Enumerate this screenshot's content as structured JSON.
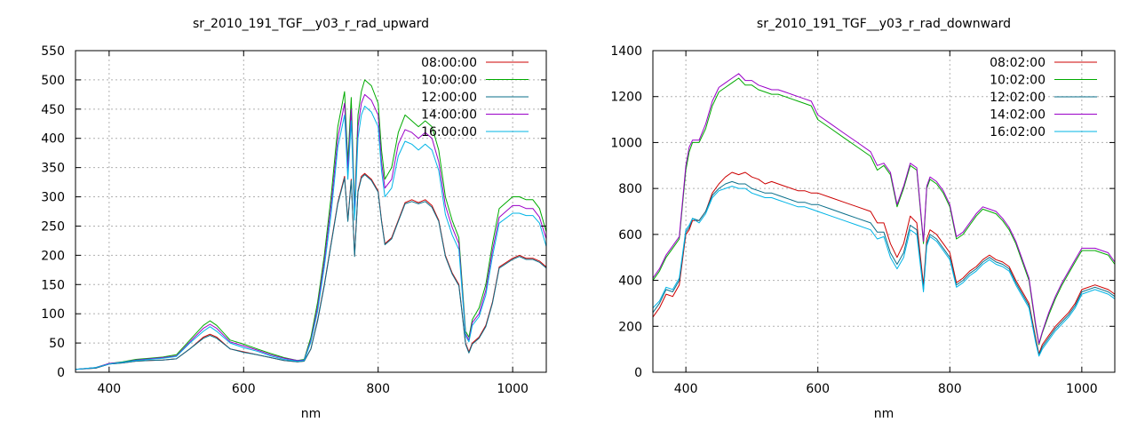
{
  "chart_data": [
    {
      "type": "line",
      "title": "sr_2010_191_TGF__y03_r_rad_upward",
      "xlabel": "nm",
      "ylabel": "",
      "xlim": [
        350,
        1050
      ],
      "ylim": [
        0,
        550
      ],
      "xticks": [
        400,
        600,
        800,
        1000
      ],
      "yticks": [
        0,
        50,
        100,
        150,
        200,
        250,
        300,
        350,
        400,
        450,
        500,
        550
      ],
      "grid": true,
      "legend": "top-right",
      "x": [
        350,
        380,
        400,
        420,
        440,
        460,
        480,
        500,
        520,
        540,
        550,
        560,
        580,
        600,
        620,
        640,
        660,
        680,
        690,
        700,
        710,
        720,
        730,
        740,
        750,
        755,
        760,
        765,
        770,
        775,
        780,
        790,
        800,
        805,
        810,
        820,
        830,
        840,
        850,
        860,
        870,
        880,
        890,
        900,
        910,
        920,
        925,
        930,
        935,
        940,
        950,
        960,
        970,
        980,
        1000,
        1010,
        1020,
        1030,
        1040,
        1050
      ],
      "series": [
        {
          "name": "08:00:00",
          "color": "#cc0000",
          "values": [
            5,
            7,
            14,
            16,
            19,
            20,
            21,
            23,
            40,
            60,
            65,
            60,
            40,
            35,
            30,
            25,
            20,
            18,
            19,
            40,
            90,
            150,
            220,
            290,
            335,
            260,
            330,
            200,
            310,
            335,
            340,
            330,
            310,
            260,
            220,
            230,
            260,
            290,
            295,
            290,
            295,
            285,
            260,
            200,
            170,
            150,
            100,
            50,
            35,
            50,
            60,
            80,
            120,
            180,
            195,
            200,
            195,
            195,
            190,
            180
          ]
        },
        {
          "name": "10:00:00",
          "color": "#00aa00",
          "values": [
            5,
            8,
            15,
            18,
            22,
            24,
            26,
            30,
            55,
            80,
            88,
            80,
            55,
            48,
            40,
            32,
            25,
            20,
            22,
            60,
            120,
            200,
            300,
            420,
            480,
            360,
            470,
            280,
            440,
            480,
            500,
            490,
            460,
            380,
            330,
            350,
            410,
            440,
            430,
            420,
            430,
            420,
            380,
            300,
            260,
            230,
            150,
            70,
            60,
            90,
            110,
            150,
            220,
            280,
            300,
            300,
            295,
            295,
            280,
            240
          ]
        },
        {
          "name": "12:00:00",
          "color": "#0a6f8a",
          "values": [
            5,
            7,
            14,
            16,
            19,
            20,
            21,
            23,
            40,
            58,
            63,
            58,
            40,
            34,
            30,
            25,
            20,
            18,
            19,
            40,
            88,
            148,
            218,
            288,
            332,
            258,
            328,
            198,
            308,
            332,
            338,
            328,
            308,
            258,
            218,
            228,
            258,
            288,
            292,
            288,
            292,
            282,
            258,
            198,
            168,
            148,
            98,
            48,
            33,
            48,
            58,
            78,
            118,
            178,
            193,
            198,
            193,
            193,
            188,
            178
          ]
        },
        {
          "name": "14:00:00",
          "color": "#9a00c8",
          "values": [
            5,
            8,
            15,
            17,
            21,
            23,
            25,
            28,
            52,
            75,
            82,
            75,
            52,
            45,
            38,
            30,
            24,
            20,
            21,
            55,
            112,
            190,
            285,
            400,
            460,
            345,
            450,
            270,
            420,
            460,
            475,
            465,
            440,
            360,
            315,
            330,
            390,
            415,
            410,
            400,
            410,
            400,
            360,
            285,
            248,
            220,
            142,
            66,
            55,
            85,
            100,
            140,
            208,
            265,
            285,
            285,
            280,
            280,
            265,
            228
          ]
        },
        {
          "name": "16:00:00",
          "color": "#00b4e6",
          "values": [
            5,
            8,
            14,
            17,
            20,
            22,
            24,
            27,
            50,
            70,
            78,
            70,
            50,
            42,
            36,
            28,
            22,
            19,
            20,
            52,
            105,
            180,
            270,
            385,
            440,
            330,
            430,
            260,
            400,
            440,
            455,
            445,
            420,
            345,
            300,
            315,
            370,
            395,
            390,
            380,
            390,
            380,
            345,
            270,
            235,
            210,
            135,
            62,
            52,
            80,
            95,
            132,
            198,
            255,
            272,
            272,
            268,
            268,
            255,
            215
          ]
        }
      ]
    },
    {
      "type": "line",
      "title": "sr_2010_191_TGF__y03_r_rad_downward",
      "xlabel": "nm",
      "ylabel": "",
      "xlim": [
        350,
        1050
      ],
      "ylim": [
        0,
        1400
      ],
      "xticks": [
        400,
        600,
        800,
        1000
      ],
      "yticks": [
        0,
        200,
        400,
        600,
        800,
        1000,
        1200,
        1400
      ],
      "grid": true,
      "legend": "top-right",
      "x": [
        350,
        360,
        370,
        380,
        390,
        400,
        405,
        410,
        420,
        430,
        440,
        450,
        460,
        470,
        480,
        490,
        500,
        510,
        520,
        530,
        540,
        550,
        560,
        570,
        580,
        590,
        600,
        620,
        640,
        660,
        680,
        690,
        700,
        710,
        720,
        730,
        740,
        750,
        760,
        765,
        770,
        780,
        790,
        800,
        810,
        820,
        830,
        840,
        850,
        860,
        870,
        880,
        890,
        900,
        910,
        920,
        930,
        935,
        940,
        950,
        960,
        970,
        980,
        990,
        1000,
        1020,
        1040,
        1050
      ],
      "series": [
        {
          "name": "08:02:00",
          "color": "#cc0000",
          "values": [
            240,
            280,
            340,
            330,
            380,
            600,
            620,
            660,
            660,
            700,
            780,
            820,
            850,
            870,
            860,
            870,
            850,
            840,
            820,
            830,
            820,
            810,
            800,
            790,
            790,
            780,
            780,
            760,
            740,
            720,
            700,
            650,
            650,
            560,
            500,
            560,
            680,
            650,
            380,
            580,
            620,
            600,
            560,
            520,
            390,
            410,
            440,
            460,
            490,
            510,
            490,
            480,
            460,
            400,
            350,
            300,
            150,
            80,
            120,
            160,
            200,
            230,
            260,
            300,
            360,
            380,
            360,
            340
          ]
        },
        {
          "name": "10:02:00",
          "color": "#00aa00",
          "values": [
            400,
            440,
            500,
            540,
            580,
            880,
            960,
            1000,
            1000,
            1060,
            1160,
            1220,
            1240,
            1260,
            1280,
            1250,
            1250,
            1230,
            1220,
            1210,
            1210,
            1200,
            1190,
            1180,
            1170,
            1160,
            1100,
            1060,
            1020,
            980,
            940,
            880,
            900,
            860,
            720,
            800,
            900,
            880,
            560,
            800,
            840,
            820,
            780,
            720,
            580,
            600,
            640,
            680,
            710,
            700,
            690,
            660,
            620,
            560,
            480,
            400,
            200,
            120,
            170,
            250,
            320,
            380,
            430,
            480,
            530,
            530,
            510,
            470
          ]
        },
        {
          "name": "12:02:00",
          "color": "#0a6f8a",
          "values": [
            260,
            300,
            360,
            350,
            400,
            610,
            630,
            670,
            660,
            700,
            770,
            800,
            820,
            830,
            820,
            820,
            800,
            790,
            780,
            780,
            770,
            760,
            750,
            740,
            740,
            730,
            730,
            710,
            690,
            670,
            650,
            610,
            610,
            520,
            470,
            520,
            640,
            620,
            360,
            560,
            600,
            580,
            540,
            500,
            380,
            400,
            430,
            450,
            480,
            500,
            480,
            470,
            450,
            390,
            340,
            290,
            140,
            75,
            110,
            150,
            190,
            220,
            250,
            290,
            350,
            370,
            350,
            330
          ]
        },
        {
          "name": "14:02:00",
          "color": "#9a00c8",
          "values": [
            410,
            450,
            510,
            550,
            590,
            900,
            980,
            1010,
            1010,
            1080,
            1180,
            1240,
            1260,
            1280,
            1300,
            1270,
            1270,
            1250,
            1240,
            1230,
            1230,
            1220,
            1210,
            1200,
            1190,
            1180,
            1120,
            1080,
            1040,
            1000,
            960,
            900,
            910,
            870,
            730,
            810,
            910,
            890,
            570,
            810,
            850,
            830,
            790,
            730,
            590,
            610,
            650,
            690,
            720,
            710,
            700,
            670,
            630,
            570,
            490,
            410,
            210,
            125,
            175,
            260,
            330,
            390,
            440,
            490,
            540,
            540,
            520,
            480
          ]
        },
        {
          "name": "16:02:00",
          "color": "#00b4e6",
          "values": [
            280,
            310,
            370,
            360,
            410,
            620,
            640,
            670,
            650,
            690,
            760,
            790,
            800,
            810,
            800,
            800,
            780,
            770,
            760,
            760,
            750,
            740,
            730,
            720,
            720,
            710,
            700,
            680,
            660,
            640,
            620,
            580,
            590,
            500,
            450,
            500,
            620,
            600,
            350,
            550,
            590,
            570,
            530,
            490,
            370,
            390,
            420,
            440,
            470,
            490,
            470,
            460,
            440,
            380,
            330,
            280,
            130,
            70,
            100,
            140,
            180,
            210,
            240,
            280,
            340,
            360,
            340,
            320
          ]
        }
      ]
    }
  ]
}
